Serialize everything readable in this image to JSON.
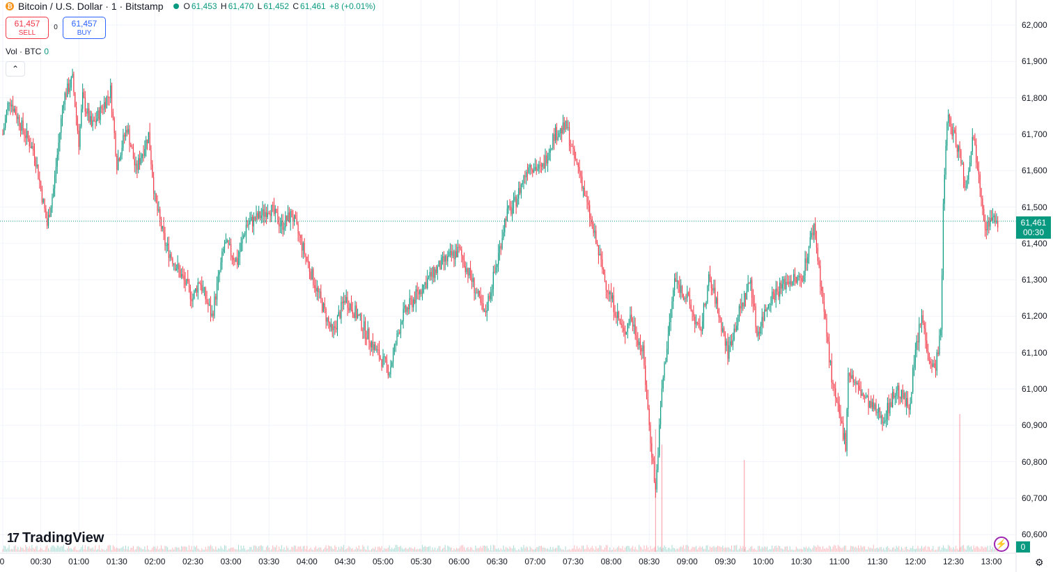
{
  "header": {
    "symbol_title": "Bitcoin / U.S. Dollar · 1 · Bitstamp",
    "ohlc": {
      "o_label": "O",
      "o": "61,453",
      "h_label": "H",
      "h": "61,470",
      "l_label": "L",
      "l": "61,452",
      "c_label": "C",
      "c": "61,461",
      "change": "+8 (+0.01%)"
    }
  },
  "trade": {
    "sell_price": "61,457",
    "sell_label": "SELL",
    "spread": "0",
    "buy_price": "61,457",
    "buy_label": "BUY"
  },
  "volume_legend": {
    "label": "Vol · BTC",
    "value": "0"
  },
  "collapse_glyph": "⌃",
  "brand": {
    "mark": "17",
    "name": "TradingView"
  },
  "icons": {
    "coin": "bitcoin-icon",
    "live": "live-dot-icon",
    "collapse": "chevron-up-icon",
    "bolt": "lightning-icon",
    "settings": "gear-icon"
  },
  "colors": {
    "up": "#089981",
    "down": "#f23645",
    "grid": "#f0f3fa"
  },
  "price_axis": {
    "labels": [
      "62,000",
      "61,900",
      "61,800",
      "61,700",
      "61,600",
      "61,500",
      "61,400",
      "61,300",
      "61,200",
      "61,100",
      "61,000",
      "60,900",
      "60,800",
      "60,700",
      "60,600"
    ],
    "current_price": "61,461",
    "countdown": "00:30",
    "volume_value": "0"
  },
  "time_axis": {
    "labels": [
      "0",
      "00:30",
      "01:00",
      "01:30",
      "02:00",
      "02:30",
      "03:00",
      "03:30",
      "04:00",
      "04:30",
      "05:00",
      "05:30",
      "06:00",
      "06:30",
      "07:00",
      "07:30",
      "08:00",
      "08:30",
      "09:00",
      "09:30",
      "10:00",
      "10:30",
      "11:00",
      "11:30",
      "12:00",
      "12:30",
      "13:00"
    ]
  },
  "chart_data": {
    "type": "candlestick",
    "symbol": "Bitcoin / U.S. Dollar",
    "interval": "1",
    "exchange": "Bitstamp",
    "y_range": [
      60600,
      62000
    ],
    "path_times": [
      "00:00",
      "00:05",
      "00:15",
      "00:25",
      "00:35",
      "00:40",
      "00:48",
      "00:55",
      "01:00",
      "01:03",
      "01:10",
      "01:15",
      "01:25",
      "01:30",
      "01:38",
      "01:45",
      "01:55",
      "02:00",
      "02:08",
      "02:15",
      "02:30",
      "02:35",
      "02:45",
      "02:55",
      "03:05",
      "03:12",
      "03:25",
      "03:30",
      "03:40",
      "03:48",
      "04:05",
      "04:20",
      "04:30",
      "04:40",
      "04:55",
      "05:05",
      "05:15",
      "05:25",
      "05:35",
      "05:48",
      "06:00",
      "06:10",
      "06:20",
      "06:30",
      "06:37",
      "06:43",
      "06:55",
      "07:05",
      "07:15",
      "07:25",
      "07:30",
      "07:35",
      "07:40",
      "07:55",
      "08:10",
      "08:15",
      "08:25",
      "08:30",
      "08:35",
      "08:40",
      "08:50",
      "09:00",
      "09:10",
      "09:17",
      "09:22",
      "09:32",
      "09:40",
      "09:50",
      "09:55",
      "10:05",
      "10:20",
      "10:30",
      "10:40",
      "10:55",
      "11:05",
      "11:07",
      "11:15",
      "11:25",
      "11:35",
      "11:45",
      "11:55",
      "12:00",
      "12:05",
      "12:10",
      "12:15",
      "12:20",
      "12:22",
      "12:25",
      "12:30",
      "12:35",
      "12:40",
      "12:45",
      "12:50",
      "12:55",
      "13:00",
      "13:05"
    ],
    "path_prices": [
      61700,
      61800,
      61720,
      61650,
      61450,
      61550,
      61800,
      61850,
      61680,
      61800,
      61720,
      61750,
      61820,
      61620,
      61720,
      61600,
      61700,
      61520,
      61400,
      61350,
      61250,
      61300,
      61200,
      61400,
      61350,
      61450,
      61480,
      61500,
      61450,
      61480,
      61300,
      61150,
      61250,
      61200,
      61100,
      61050,
      61200,
      61250,
      61300,
      61350,
      61380,
      61300,
      61200,
      61350,
      61480,
      61500,
      61620,
      61600,
      61700,
      61720,
      61640,
      61600,
      61520,
      61300,
      61150,
      61200,
      61100,
      60900,
      60720,
      61000,
      61300,
      61250,
      61150,
      61300,
      61250,
      61100,
      61200,
      61300,
      61150,
      61250,
      61300,
      61300,
      61450,
      61000,
      60850,
      61050,
      61000,
      60950,
      60920,
      61000,
      60950,
      61100,
      61200,
      61100,
      61050,
      61150,
      61500,
      61750,
      61700,
      61650,
      61550,
      61700,
      61600,
      61450,
      61461,
      61461
    ],
    "volume_spikes": [
      {
        "time": "08:35",
        "btc": 0.8
      },
      {
        "time": "08:40",
        "btc": 0.7
      },
      {
        "time": "09:45",
        "btc": 0.6
      },
      {
        "time": "12:35",
        "btc": 0.9
      }
    ]
  }
}
